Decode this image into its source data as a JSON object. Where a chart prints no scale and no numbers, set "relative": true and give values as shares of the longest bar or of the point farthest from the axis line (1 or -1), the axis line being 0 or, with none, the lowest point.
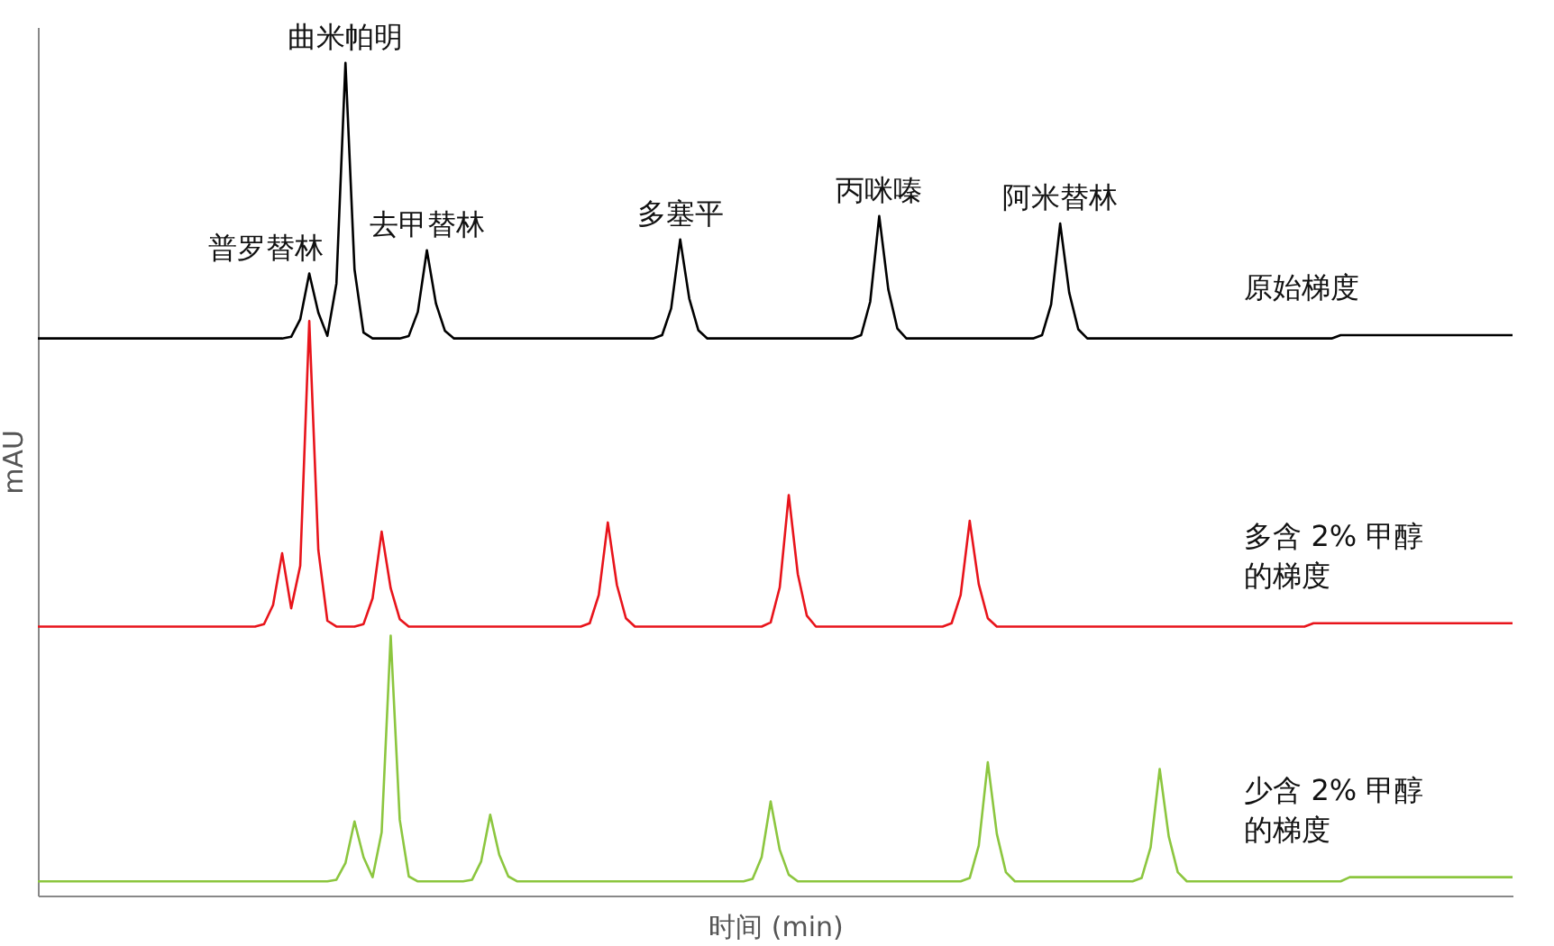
{
  "chart_data": {
    "type": "line",
    "relative": true,
    "xlabel": "时间 (min)",
    "ylabel": "mAU",
    "legend": false,
    "grid": false,
    "marker": "none",
    "line_style": "solid",
    "categories": [
      null,
      null,
      null,
      null,
      null,
      null,
      null,
      null,
      null,
      null,
      null,
      null,
      null,
      null,
      null,
      null,
      null,
      null,
      null,
      null,
      null,
      null,
      null,
      null,
      null,
      null,
      null,
      null,
      null,
      null,
      null,
      null,
      null,
      null,
      null,
      null,
      null,
      null,
      null,
      null,
      null,
      null,
      null,
      null,
      null,
      null,
      null,
      null,
      null,
      null,
      null,
      null,
      null,
      null,
      null,
      null,
      null,
      null,
      null,
      null,
      null,
      null,
      null,
      null,
      null,
      null,
      null,
      null,
      null,
      null,
      null,
      null,
      null,
      null,
      null,
      null,
      null,
      null,
      null,
      null,
      null,
      null,
      null,
      null,
      null,
      null,
      null,
      null,
      null,
      null,
      null,
      null,
      null,
      null,
      null,
      null,
      null,
      null,
      null,
      null,
      null,
      null,
      null,
      null,
      null,
      null,
      null,
      null,
      null,
      null,
      null,
      null,
      null,
      null,
      null,
      null,
      null,
      null,
      null,
      null,
      null,
      null,
      null,
      null,
      null,
      null,
      null,
      null,
      null,
      null,
      null,
      null,
      null,
      null,
      null,
      null,
      null,
      null,
      null,
      null,
      null,
      null,
      null,
      null,
      null,
      null,
      null,
      null,
      null,
      null,
      null,
      null,
      null,
      null,
      null,
      null,
      null,
      null,
      null,
      null,
      null,
      null,
      null,
      null
    ],
    "series": [
      {
        "name": "原始梯度",
        "color": "#000000",
        "values": [
          0.669,
          0.669,
          0.669,
          0.669,
          0.669,
          0.669,
          0.669,
          0.669,
          0.669,
          0.669,
          0.669,
          0.669,
          0.669,
          0.669,
          0.669,
          0.669,
          0.669,
          0.669,
          0.669,
          0.669,
          0.669,
          0.669,
          0.669,
          0.669,
          0.669,
          0.669,
          0.669,
          0.669,
          0.671,
          0.692,
          0.747,
          0.7,
          0.672,
          0.735,
          1.0,
          0.752,
          0.676,
          0.669,
          0.669,
          0.669,
          0.669,
          0.672,
          0.701,
          0.775,
          0.711,
          0.678,
          0.669,
          0.669,
          0.669,
          0.669,
          0.669,
          0.669,
          0.669,
          0.669,
          0.669,
          0.669,
          0.669,
          0.669,
          0.669,
          0.669,
          0.669,
          0.669,
          0.669,
          0.669,
          0.669,
          0.669,
          0.669,
          0.669,
          0.669,
          0.673,
          0.705,
          0.788,
          0.717,
          0.679,
          0.669,
          0.669,
          0.669,
          0.669,
          0.669,
          0.669,
          0.669,
          0.669,
          0.669,
          0.669,
          0.669,
          0.669,
          0.669,
          0.669,
          0.669,
          0.669,
          0.669,
          0.673,
          0.713,
          0.816,
          0.728,
          0.681,
          0.669,
          0.669,
          0.669,
          0.669,
          0.669,
          0.669,
          0.669,
          0.669,
          0.669,
          0.669,
          0.669,
          0.669,
          0.669,
          0.669,
          0.669,
          0.673,
          0.71,
          0.807,
          0.724,
          0.68,
          0.669,
          0.669,
          0.669,
          0.669,
          0.669,
          0.669,
          0.669,
          0.669,
          0.669,
          0.669,
          0.669,
          0.669,
          0.669,
          0.669,
          0.669,
          0.669,
          0.669,
          0.669,
          0.669,
          0.669,
          0.669,
          0.669,
          0.669,
          0.669,
          0.669,
          0.669,
          0.669,
          0.669,
          0.673,
          0.673,
          0.673,
          0.673,
          0.673,
          0.673,
          0.673,
          0.673,
          0.673,
          0.673,
          0.673,
          0.673,
          0.673,
          0.673,
          0.673,
          0.673,
          0.673,
          0.673,
          0.673,
          0.673
        ]
      },
      {
        "name": "多含 2% 甲醇的梯度",
        "color": "#e8141b",
        "values": [
          0.323,
          0.323,
          0.323,
          0.323,
          0.323,
          0.323,
          0.323,
          0.323,
          0.323,
          0.323,
          0.323,
          0.323,
          0.323,
          0.323,
          0.323,
          0.323,
          0.323,
          0.323,
          0.323,
          0.323,
          0.323,
          0.323,
          0.323,
          0.323,
          0.323,
          0.326,
          0.349,
          0.411,
          0.345,
          0.396,
          0.69,
          0.415,
          0.33,
          0.323,
          0.323,
          0.323,
          0.326,
          0.357,
          0.437,
          0.369,
          0.332,
          0.323,
          0.323,
          0.323,
          0.323,
          0.323,
          0.323,
          0.323,
          0.323,
          0.323,
          0.323,
          0.323,
          0.323,
          0.323,
          0.323,
          0.323,
          0.323,
          0.323,
          0.323,
          0.323,
          0.323,
          0.327,
          0.361,
          0.448,
          0.373,
          0.333,
          0.323,
          0.323,
          0.323,
          0.323,
          0.323,
          0.323,
          0.323,
          0.323,
          0.323,
          0.323,
          0.323,
          0.323,
          0.323,
          0.323,
          0.323,
          0.328,
          0.37,
          0.481,
          0.386,
          0.336,
          0.323,
          0.323,
          0.323,
          0.323,
          0.323,
          0.323,
          0.323,
          0.323,
          0.323,
          0.323,
          0.323,
          0.323,
          0.323,
          0.323,
          0.323,
          0.327,
          0.361,
          0.45,
          0.374,
          0.333,
          0.323,
          0.323,
          0.323,
          0.323,
          0.323,
          0.323,
          0.323,
          0.323,
          0.323,
          0.323,
          0.323,
          0.323,
          0.323,
          0.323,
          0.323,
          0.323,
          0.323,
          0.323,
          0.323,
          0.323,
          0.323,
          0.323,
          0.323,
          0.323,
          0.323,
          0.323,
          0.323,
          0.323,
          0.323,
          0.323,
          0.323,
          0.323,
          0.323,
          0.323,
          0.323,
          0.327,
          0.327,
          0.327,
          0.327,
          0.327,
          0.327,
          0.327,
          0.327,
          0.327,
          0.327,
          0.327,
          0.327,
          0.327,
          0.327,
          0.327,
          0.327,
          0.327,
          0.327,
          0.327,
          0.327,
          0.327,
          0.327,
          0.327
        ]
      },
      {
        "name": "少含 2% 甲醇的梯度",
        "color": "#8cc63f",
        "values": [
          0.017,
          0.017,
          0.017,
          0.017,
          0.017,
          0.017,
          0.017,
          0.017,
          0.017,
          0.017,
          0.017,
          0.017,
          0.017,
          0.017,
          0.017,
          0.017,
          0.017,
          0.017,
          0.017,
          0.017,
          0.017,
          0.017,
          0.017,
          0.017,
          0.017,
          0.017,
          0.017,
          0.017,
          0.017,
          0.017,
          0.017,
          0.017,
          0.017,
          0.019,
          0.039,
          0.089,
          0.046,
          0.022,
          0.076,
          0.312,
          0.091,
          0.023,
          0.017,
          0.017,
          0.017,
          0.017,
          0.017,
          0.017,
          0.019,
          0.041,
          0.097,
          0.049,
          0.023,
          0.017,
          0.017,
          0.017,
          0.017,
          0.017,
          0.017,
          0.017,
          0.017,
          0.017,
          0.017,
          0.017,
          0.017,
          0.017,
          0.017,
          0.017,
          0.017,
          0.017,
          0.017,
          0.017,
          0.017,
          0.017,
          0.017,
          0.017,
          0.017,
          0.017,
          0.017,
          0.02,
          0.046,
          0.113,
          0.055,
          0.025,
          0.017,
          0.017,
          0.017,
          0.017,
          0.017,
          0.017,
          0.017,
          0.017,
          0.017,
          0.017,
          0.017,
          0.017,
          0.017,
          0.017,
          0.017,
          0.017,
          0.017,
          0.017,
          0.017,
          0.021,
          0.06,
          0.16,
          0.074,
          0.028,
          0.017,
          0.017,
          0.017,
          0.017,
          0.017,
          0.017,
          0.017,
          0.017,
          0.017,
          0.017,
          0.017,
          0.017,
          0.017,
          0.017,
          0.021,
          0.058,
          0.152,
          0.071,
          0.028,
          0.017,
          0.017,
          0.017,
          0.017,
          0.017,
          0.017,
          0.017,
          0.017,
          0.017,
          0.017,
          0.017,
          0.017,
          0.017,
          0.017,
          0.017,
          0.017,
          0.017,
          0.017,
          0.022,
          0.022,
          0.022,
          0.022,
          0.022,
          0.022,
          0.022,
          0.022,
          0.022,
          0.022,
          0.022,
          0.022,
          0.022,
          0.022,
          0.022,
          0.022,
          0.022,
          0.022,
          0.022
        ]
      }
    ],
    "annotations": [
      "普罗替林",
      "曲米帕明",
      "去甲替林",
      "多塞平",
      "丙咪嗪",
      "阿米替林"
    ]
  }
}
